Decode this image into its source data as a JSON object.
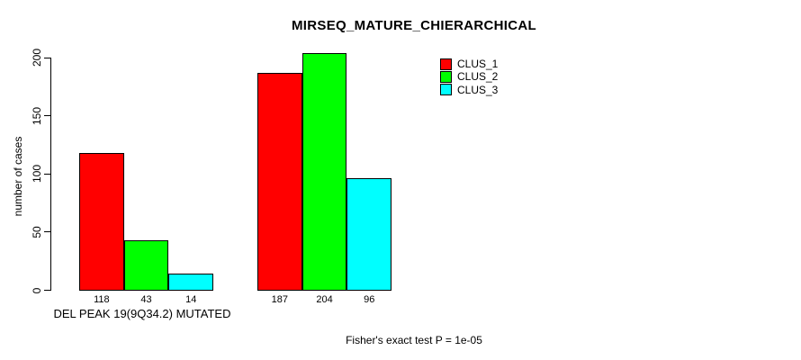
{
  "chart_data": {
    "type": "bar",
    "title": "MIRSEQ_MATURE_CHIERARCHICAL",
    "ylabel": "number of cases",
    "ylim": [
      0,
      200
    ],
    "yticks": [
      0,
      50,
      100,
      150,
      200
    ],
    "grid": false,
    "legend_position": "top-right",
    "categories": [
      "DEL PEAK 19(9Q34.2) MUTATED",
      ""
    ],
    "series": [
      {
        "name": "CLUS_1",
        "color": "#ff0000",
        "values": [
          118,
          187
        ]
      },
      {
        "name": "CLUS_2",
        "color": "#00ff00",
        "values": [
          43,
          204
        ]
      },
      {
        "name": "CLUS_3",
        "color": "#00ffff",
        "values": [
          14,
          96
        ]
      }
    ],
    "footnote": "Fisher's exact test P = 1e-05"
  },
  "colors": {
    "background": "#ffffff",
    "axis": "#000000",
    "text": "#000000",
    "clus_1": "#ff0000",
    "clus_2": "#00ff00",
    "clus_3": "#00ffff"
  }
}
